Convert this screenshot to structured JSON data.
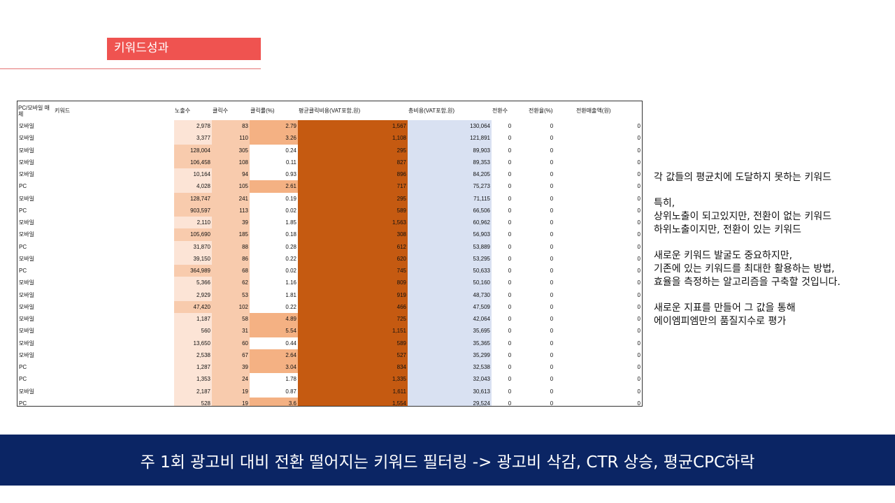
{
  "slide": {
    "title": "키워드성과",
    "banner": "주 1회 광고비 대비 전환 떨어지는 키워드 필터링 -> 광고비 삭감, CTR 상승, 평균CPC하락"
  },
  "side_notes": {
    "p1": [
      "각 값들의 평균치에 도달하지 못하는 키워드"
    ],
    "p2": [
      "특히,",
      "상위노출이 되고있지만, 전환이 없는 키워드",
      "하위노출이지만, 전환이 있는 키워드"
    ],
    "p3": [
      "새로운 키워드 발굴도 중요하지만,",
      "기존에 있는 키워드를 최대한 활용하는 방법,",
      "효율을 측정하는 알고리즘을 구축할 것입니다."
    ],
    "p4": [
      "새로운 지표를 만들어 그 값을 통해",
      "에이엠피엠만의 품질지수로 평가"
    ]
  },
  "table": {
    "headers": {
      "device": "PC/모바일 매체",
      "keyword": "키워드",
      "impressions": "노출수",
      "clicks": "클릭수",
      "ctr": "클릭률(%)",
      "avg_cpc": "평균클릭비용(VAT포함,원)",
      "total_cost": "총비용(VAT포함,원)",
      "conversions": "전환수",
      "conv_rate": "전환율(%)",
      "conv_revenue": "전환매출액(원)"
    },
    "rows": [
      {
        "device": "모바일",
        "impressions": "2,978",
        "clicks": "83",
        "ctr": "2.79",
        "avg_cpc": "1,567",
        "total_cost": "130,064",
        "conversions": "0",
        "conv_rate": "0",
        "conv_revenue": "0",
        "ctr_high": true,
        "imp_dark": false
      },
      {
        "device": "모바일",
        "impressions": "3,377",
        "clicks": "110",
        "ctr": "3.26",
        "avg_cpc": "1,108",
        "total_cost": "121,891",
        "conversions": "0",
        "conv_rate": "0",
        "conv_revenue": "0",
        "ctr_high": true,
        "imp_dark": false
      },
      {
        "device": "모바일",
        "impressions": "128,004",
        "clicks": "305",
        "ctr": "0.24",
        "avg_cpc": "295",
        "total_cost": "89,903",
        "conversions": "0",
        "conv_rate": "0",
        "conv_revenue": "0",
        "ctr_high": false,
        "imp_dark": true
      },
      {
        "device": "모바일",
        "impressions": "106,458",
        "clicks": "108",
        "ctr": "0.11",
        "avg_cpc": "827",
        "total_cost": "89,353",
        "conversions": "0",
        "conv_rate": "0",
        "conv_revenue": "0",
        "ctr_high": false,
        "imp_dark": true
      },
      {
        "device": "모바일",
        "impressions": "10,164",
        "clicks": "94",
        "ctr": "0.93",
        "avg_cpc": "896",
        "total_cost": "84,205",
        "conversions": "0",
        "conv_rate": "0",
        "conv_revenue": "0",
        "ctr_high": false,
        "imp_dark": false
      },
      {
        "device": "PC",
        "impressions": "4,028",
        "clicks": "105",
        "ctr": "2.61",
        "avg_cpc": "717",
        "total_cost": "75,273",
        "conversions": "0",
        "conv_rate": "0",
        "conv_revenue": "0",
        "ctr_high": true,
        "imp_dark": false
      },
      {
        "device": "모바일",
        "impressions": "128,747",
        "clicks": "241",
        "ctr": "0.19",
        "avg_cpc": "295",
        "total_cost": "71,115",
        "conversions": "0",
        "conv_rate": "0",
        "conv_revenue": "0",
        "ctr_high": false,
        "imp_dark": true
      },
      {
        "device": "PC",
        "impressions": "903,597",
        "clicks": "113",
        "ctr": "0.02",
        "avg_cpc": "589",
        "total_cost": "66,506",
        "conversions": "0",
        "conv_rate": "0",
        "conv_revenue": "0",
        "ctr_high": false,
        "imp_dark": true
      },
      {
        "device": "모바일",
        "impressions": "2,110",
        "clicks": "39",
        "ctr": "1.85",
        "avg_cpc": "1,563",
        "total_cost": "60,962",
        "conversions": "0",
        "conv_rate": "0",
        "conv_revenue": "0",
        "ctr_high": false,
        "imp_dark": false
      },
      {
        "device": "모바일",
        "impressions": "105,690",
        "clicks": "185",
        "ctr": "0.18",
        "avg_cpc": "308",
        "total_cost": "56,903",
        "conversions": "0",
        "conv_rate": "0",
        "conv_revenue": "0",
        "ctr_high": false,
        "imp_dark": true
      },
      {
        "device": "PC",
        "impressions": "31,870",
        "clicks": "88",
        "ctr": "0.28",
        "avg_cpc": "612",
        "total_cost": "53,889",
        "conversions": "0",
        "conv_rate": "0",
        "conv_revenue": "0",
        "ctr_high": false,
        "imp_dark": false
      },
      {
        "device": "모바일",
        "impressions": "39,150",
        "clicks": "86",
        "ctr": "0.22",
        "avg_cpc": "620",
        "total_cost": "53,295",
        "conversions": "0",
        "conv_rate": "0",
        "conv_revenue": "0",
        "ctr_high": false,
        "imp_dark": false
      },
      {
        "device": "PC",
        "impressions": "364,989",
        "clicks": "68",
        "ctr": "0.02",
        "avg_cpc": "745",
        "total_cost": "50,633",
        "conversions": "0",
        "conv_rate": "0",
        "conv_revenue": "0",
        "ctr_high": false,
        "imp_dark": true
      },
      {
        "device": "모바일",
        "impressions": "5,366",
        "clicks": "62",
        "ctr": "1.16",
        "avg_cpc": "809",
        "total_cost": "50,160",
        "conversions": "0",
        "conv_rate": "0",
        "conv_revenue": "0",
        "ctr_high": false,
        "imp_dark": false
      },
      {
        "device": "모바일",
        "impressions": "2,929",
        "clicks": "53",
        "ctr": "1.81",
        "avg_cpc": "919",
        "total_cost": "48,730",
        "conversions": "0",
        "conv_rate": "0",
        "conv_revenue": "0",
        "ctr_high": false,
        "imp_dark": false
      },
      {
        "device": "모바일",
        "impressions": "47,420",
        "clicks": "102",
        "ctr": "0.22",
        "avg_cpc": "466",
        "total_cost": "47,509",
        "conversions": "0",
        "conv_rate": "0",
        "conv_revenue": "0",
        "ctr_high": false,
        "imp_dark": true
      },
      {
        "device": "모바일",
        "impressions": "1,187",
        "clicks": "58",
        "ctr": "4.89",
        "avg_cpc": "725",
        "total_cost": "42,064",
        "conversions": "0",
        "conv_rate": "0",
        "conv_revenue": "0",
        "ctr_high": true,
        "imp_dark": false
      },
      {
        "device": "모바일",
        "impressions": "560",
        "clicks": "31",
        "ctr": "5.54",
        "avg_cpc": "1,151",
        "total_cost": "35,695",
        "conversions": "0",
        "conv_rate": "0",
        "conv_revenue": "0",
        "ctr_high": true,
        "imp_dark": false
      },
      {
        "device": "모바일",
        "impressions": "13,650",
        "clicks": "60",
        "ctr": "0.44",
        "avg_cpc": "589",
        "total_cost": "35,365",
        "conversions": "0",
        "conv_rate": "0",
        "conv_revenue": "0",
        "ctr_high": false,
        "imp_dark": false
      },
      {
        "device": "모바일",
        "impressions": "2,538",
        "clicks": "67",
        "ctr": "2.64",
        "avg_cpc": "527",
        "total_cost": "35,299",
        "conversions": "0",
        "conv_rate": "0",
        "conv_revenue": "0",
        "ctr_high": true,
        "imp_dark": false
      },
      {
        "device": "PC",
        "impressions": "1,287",
        "clicks": "39",
        "ctr": "3.04",
        "avg_cpc": "834",
        "total_cost": "32,538",
        "conversions": "0",
        "conv_rate": "0",
        "conv_revenue": "0",
        "ctr_high": true,
        "imp_dark": false
      },
      {
        "device": "PC",
        "impressions": "1,353",
        "clicks": "24",
        "ctr": "1.78",
        "avg_cpc": "1,335",
        "total_cost": "32,043",
        "conversions": "0",
        "conv_rate": "0",
        "conv_revenue": "0",
        "ctr_high": false,
        "imp_dark": false
      },
      {
        "device": "모바일",
        "impressions": "2,187",
        "clicks": "19",
        "ctr": "0.87",
        "avg_cpc": "1,611",
        "total_cost": "30,613",
        "conversions": "0",
        "conv_rate": "0",
        "conv_revenue": "0",
        "ctr_high": false,
        "imp_dark": false
      },
      {
        "device": "PC",
        "impressions": "528",
        "clicks": "19",
        "ctr": "3.6",
        "avg_cpc": "1,554",
        "total_cost": "29,524",
        "conversions": "0",
        "conv_rate": "0",
        "conv_revenue": "0",
        "ctr_high": true,
        "imp_dark": false
      }
    ]
  },
  "colors": {
    "title_bg": "#ef5350",
    "banner_bg": "#0b2564",
    "imp_light": "#fce4d6",
    "imp_dark": "#f8cbad",
    "ctr_high": "#f4b183",
    "cpc_fill": "#c55a11",
    "cost_fill": "#d9e1f2"
  }
}
